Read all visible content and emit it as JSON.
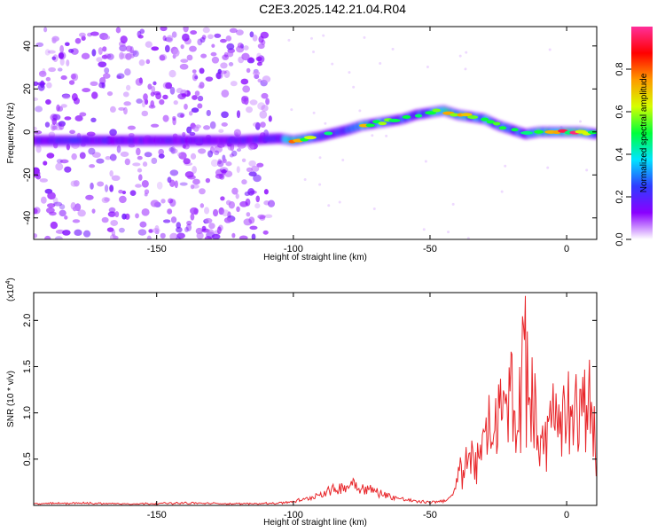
{
  "title": "C2E3.2025.142.21.04.R04",
  "colorbar": {
    "label": "Normalized spectral amplitude",
    "ticks": [
      "0.0",
      "0.2",
      "0.4",
      "0.6",
      "0.8"
    ],
    "tick_values": [
      0.0,
      0.2,
      0.4,
      0.6,
      0.8
    ],
    "range": [
      0,
      1
    ],
    "colors": [
      "#ffffff",
      "#8a00ff",
      "#2f3cff",
      "#00e5ff",
      "#00ff3a",
      "#d6ff00",
      "#ff9a00",
      "#ff0000",
      "#ff2f9a"
    ]
  },
  "chart_data": [
    {
      "type": "heatmap",
      "xlabel": "Height of straight line (km)",
      "ylabel": "Frequency (Hz)",
      "xlim": [
        -195,
        11
      ],
      "ylim": [
        -50,
        49
      ],
      "x_ticks": [
        -150,
        -100,
        -50,
        0
      ],
      "x_tick_labels": [
        "-150",
        "-100",
        "-50",
        "0"
      ],
      "y_ticks": [
        -40,
        -20,
        0,
        20,
        40
      ],
      "y_tick_labels": [
        "-40",
        "-20",
        "0",
        "20",
        "40"
      ],
      "ridge": {
        "x": [
          -195,
          -180,
          -160,
          -140,
          -120,
          -105,
          -100,
          -90,
          -80,
          -75,
          -70,
          -60,
          -55,
          -50,
          -45,
          -40,
          -35,
          -30,
          -25,
          -20,
          -15,
          -10,
          -5,
          0,
          5,
          11
        ],
        "freq": [
          -4,
          -4,
          -4,
          -4,
          -4,
          -3,
          -4,
          -2,
          1,
          3,
          4,
          6,
          8,
          9,
          10,
          8,
          7,
          6,
          3,
          1,
          -1,
          0,
          0,
          0,
          0,
          -1
        ],
        "amplitude": [
          0.3,
          0.4,
          0.3,
          0.3,
          0.3,
          0.4,
          0.9,
          0.4,
          0.5,
          0.7,
          0.6,
          0.5,
          0.5,
          0.6,
          0.7,
          0.8,
          0.6,
          0.6,
          0.5,
          0.6,
          0.4,
          0.8,
          0.9,
          0.9,
          0.9,
          0.4
        ]
      },
      "noise_region_x": [
        -195,
        -108
      ]
    },
    {
      "type": "line",
      "xlabel": "Height of straight line (km)",
      "ylabel": "SNR (10 * v/v)",
      "y_multiplier": "(x10",
      "y_multiplier_exp": "4",
      "y_multiplier_close": ")",
      "xlim": [
        -195,
        11
      ],
      "ylim": [
        0,
        2.3
      ],
      "x_ticks": [
        -150,
        -100,
        -50,
        0
      ],
      "x_tick_labels": [
        "-150",
        "-100",
        "-50",
        "0"
      ],
      "y_ticks": [
        0.5,
        1.0,
        1.5,
        2.0
      ],
      "y_tick_labels": [
        "0.5",
        "1.0",
        "1.5",
        "2.0"
      ],
      "series": [
        {
          "color": "#e8262a",
          "x": [
            -195,
            -180,
            -160,
            -140,
            -120,
            -105,
            -100,
            -95,
            -90,
            -85,
            -80,
            -78,
            -75,
            -72,
            -70,
            -65,
            -60,
            -55,
            -50,
            -45,
            -42,
            -40,
            -38,
            -35,
            -32,
            -30,
            -28,
            -25,
            -22,
            -20,
            -18,
            -16,
            -15,
            -14,
            -12,
            -10,
            -8,
            -6,
            -4,
            -2,
            0,
            2,
            4,
            6,
            8,
            9,
            10,
            11
          ],
          "y": [
            0.02,
            0.03,
            0.02,
            0.03,
            0.02,
            0.03,
            0.05,
            0.08,
            0.15,
            0.2,
            0.25,
            0.3,
            0.22,
            0.2,
            0.18,
            0.12,
            0.08,
            0.05,
            0.04,
            0.06,
            0.1,
            0.3,
            0.5,
            0.55,
            0.6,
            0.75,
            0.9,
            1.1,
            1.2,
            1.5,
            0.9,
            1.8,
            2.2,
            1.3,
            1.1,
            0.9,
            0.8,
            1.0,
            1.1,
            0.9,
            1.3,
            1.1,
            1.2,
            1.0,
            1.35,
            1.6,
            0.8,
            0.4
          ]
        }
      ]
    }
  ]
}
